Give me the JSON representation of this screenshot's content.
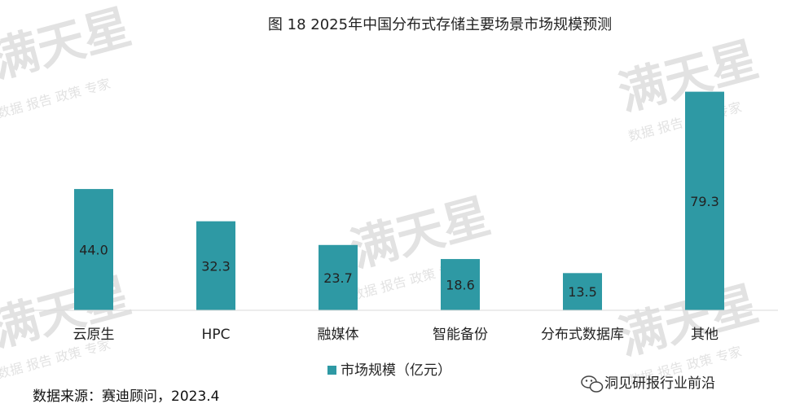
{
  "chart_data": {
    "type": "bar",
    "title": "图 18 2025年中国分布式存储主要场景市场规模预测",
    "categories": [
      "云原生",
      "HPC",
      "融媒体",
      "智能备份",
      "分布式数据库",
      "其他"
    ],
    "series": [
      {
        "name": "市场规模（亿元）",
        "values": [
          44.0,
          32.3,
          23.7,
          18.6,
          13.5,
          79.3
        ]
      }
    ],
    "value_labels": [
      "44.0",
      "32.3",
      "23.7",
      "18.6",
      "13.5",
      "79.3"
    ],
    "xlabel": "",
    "ylabel": "",
    "ylim": [
      0,
      84.5
    ],
    "grid": false,
    "legend_position": "bottom-center",
    "bar_color": "#2e99a4"
  },
  "footer": {
    "source": "数据来源：赛迪顾问，2023.4",
    "brand": "洞见研报行业前沿"
  },
  "icons": {
    "brand_icon": "wechat-icon"
  }
}
